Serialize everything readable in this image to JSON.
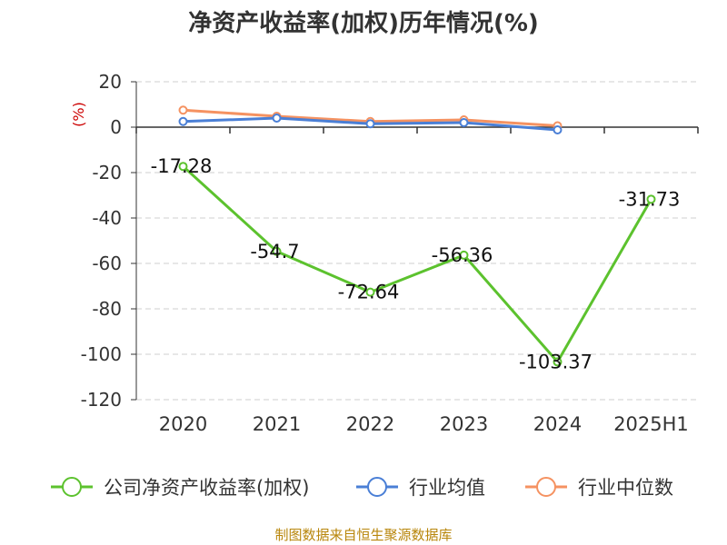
{
  "colors": {
    "company": "#5cc22e",
    "industry_avg": "#4a7fd6",
    "industry_median": "#f59261",
    "axis": "#333333",
    "grid": "#cfcfcf"
  },
  "source_text": "制图数据来自恒生聚源数据库",
  "chart_data": {
    "type": "line",
    "title": "净资产收益率(加权)历年情况(%)",
    "ylabel": "(%)",
    "categories": [
      "2020",
      "2021",
      "2022",
      "2023",
      "2024",
      "2025H1"
    ],
    "ylim": [
      -120,
      20
    ],
    "yticks": [
      20,
      0,
      -20,
      -40,
      -60,
      -80,
      -100,
      -120
    ],
    "grid": "horizontal-dashed",
    "legend_position": "bottom",
    "series": [
      {
        "key": "company",
        "name": "公司净资产收益率(加权)",
        "values": [
          -17.28,
          -54.7,
          -72.64,
          -56.36,
          -103.37,
          -31.73
        ],
        "labels": [
          "-17.28",
          "-54.7",
          "-72.64",
          "-56.36",
          "-103.37",
          "-31.73"
        ]
      },
      {
        "key": "industry_avg",
        "name": "行业均值",
        "values": [
          2.5,
          4.0,
          1.5,
          2.0,
          -1.2,
          null
        ]
      },
      {
        "key": "industry_median",
        "name": "行业中位数",
        "values": [
          7.5,
          4.8,
          2.5,
          3.2,
          0.6,
          null
        ]
      }
    ]
  }
}
